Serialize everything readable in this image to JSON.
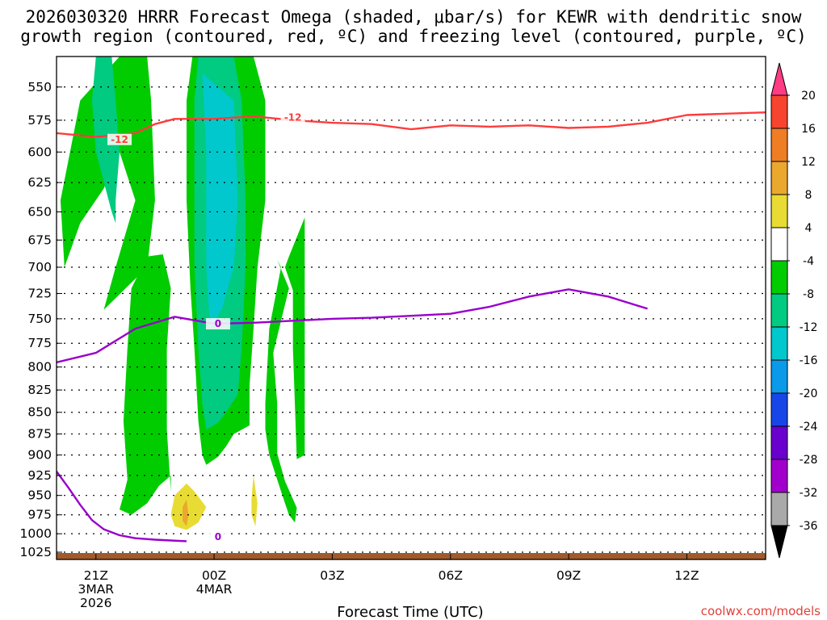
{
  "title": {
    "line1": "2026030320 HRRR Forecast Omega (shaded, μbar/s) for KEWR with dendritic snow",
    "line2": "growth region (contoured, red, ºC) and freezing level (contoured, purple, ºC)"
  },
  "watermark": "coolwx.com/models",
  "chart_data": {
    "type": "time-height cross section",
    "xlabel": "Forecast Time (UTC)",
    "x_ticks": [
      {
        "hour": 21,
        "lines": [
          "21Z",
          "3MAR",
          "2026"
        ]
      },
      {
        "hour": 24,
        "lines": [
          "00Z",
          "4MAR"
        ]
      },
      {
        "hour": 27,
        "lines": [
          "03Z"
        ]
      },
      {
        "hour": 30,
        "lines": [
          "06Z"
        ]
      },
      {
        "hour": 33,
        "lines": [
          "09Z"
        ]
      },
      {
        "hour": 36,
        "lines": [
          "12Z"
        ]
      }
    ],
    "xlim": [
      20,
      38
    ],
    "y_ticks": [
      550,
      575,
      600,
      625,
      650,
      675,
      700,
      725,
      750,
      775,
      800,
      825,
      850,
      875,
      900,
      925,
      950,
      975,
      1000,
      1025
    ],
    "ylim": [
      1035,
      528
    ],
    "y_scale": "log-pressure (hPa)",
    "grid": "dotted horizontal",
    "colorbar": {
      "labels": [
        "20",
        "16",
        "12",
        "8",
        "4",
        "-4",
        "-8",
        "-12",
        "-16",
        "-20",
        "-24",
        "-28",
        "-32",
        "-36"
      ],
      "colors": [
        "#ff3c84",
        "#f6442f",
        "#ef7d24",
        "#eaa82e",
        "#e8dc34",
        "#ffffff",
        "#00cc00",
        "#00cb80",
        "#00c8cc",
        "#0b99ea",
        "#1845e8",
        "#6a00cd",
        "#a100cc",
        "#a9a9a9",
        "#000000"
      ],
      "extend": "both"
    },
    "shaded_regions": [
      {
        "level": "-8 to -4",
        "color": "#00cc00",
        "polygon": [
          [
            21.6,
            528
          ],
          [
            20.6,
            560
          ],
          [
            20.1,
            640
          ],
          [
            20.2,
            700
          ],
          [
            20.6,
            660
          ],
          [
            21.2,
            630
          ],
          [
            21.6,
            600
          ],
          [
            22.0,
            640
          ],
          [
            21.5,
            700
          ],
          [
            21.2,
            741
          ],
          [
            22.3,
            700
          ],
          [
            22.5,
            640
          ],
          [
            22.4,
            560
          ],
          [
            22.3,
            528
          ]
        ]
      },
      {
        "level": "-12 to -8",
        "color": "#00cb80",
        "polygon": [
          [
            21.0,
            528
          ],
          [
            20.9,
            560
          ],
          [
            21.0,
            600
          ],
          [
            21.4,
            650
          ],
          [
            21.5,
            660
          ],
          [
            21.5,
            640
          ],
          [
            21.6,
            600
          ],
          [
            21.5,
            560
          ],
          [
            21.4,
            528
          ]
        ]
      },
      {
        "level": "-8 to -4",
        "color": "#00cc00",
        "polygon": [
          [
            22.3,
            690
          ],
          [
            21.9,
            720
          ],
          [
            21.8,
            780
          ],
          [
            21.7,
            860
          ],
          [
            21.8,
            930
          ],
          [
            21.7,
            950
          ],
          [
            21.6,
            968
          ],
          [
            21.9,
            975
          ],
          [
            22.3,
            960
          ],
          [
            22.6,
            938
          ],
          [
            22.9,
            925
          ],
          [
            22.9,
            945
          ],
          [
            22.8,
            870
          ],
          [
            22.8,
            780
          ],
          [
            22.9,
            720
          ],
          [
            22.7,
            688
          ]
        ]
      },
      {
        "level": "-8 to -4",
        "color": "#00cc00",
        "polygon": [
          [
            23.45,
            528
          ],
          [
            23.3,
            560
          ],
          [
            23.3,
            640
          ],
          [
            23.4,
            720
          ],
          [
            23.5,
            780
          ],
          [
            23.6,
            860
          ],
          [
            23.7,
            900
          ],
          [
            23.8,
            912
          ],
          [
            24.1,
            902
          ],
          [
            24.3,
            890
          ],
          [
            24.5,
            875
          ],
          [
            24.9,
            865
          ],
          [
            24.9,
            820
          ],
          [
            25.0,
            760
          ],
          [
            25.1,
            700
          ],
          [
            25.3,
            640
          ],
          [
            25.3,
            560
          ],
          [
            25.0,
            528
          ]
        ]
      },
      {
        "level": "-12 to -8",
        "color": "#00cb80",
        "polygon": [
          [
            23.6,
            528
          ],
          [
            23.5,
            560
          ],
          [
            23.5,
            600
          ],
          [
            23.5,
            700
          ],
          [
            23.6,
            780
          ],
          [
            23.7,
            840
          ],
          [
            23.8,
            870
          ],
          [
            24.1,
            862
          ],
          [
            24.3,
            850
          ],
          [
            24.6,
            830
          ],
          [
            24.7,
            780
          ],
          [
            24.8,
            700
          ],
          [
            24.8,
            640
          ],
          [
            24.7,
            560
          ],
          [
            24.5,
            528
          ]
        ]
      },
      {
        "level": "-16 to -12",
        "color": "#00c8cc",
        "polygon": [
          [
            23.7,
            540
          ],
          [
            23.8,
            600
          ],
          [
            23.8,
            700
          ],
          [
            23.9,
            760
          ],
          [
            24.2,
            740
          ],
          [
            24.5,
            700
          ],
          [
            24.6,
            640
          ],
          [
            24.5,
            560
          ]
        ]
      },
      {
        "level": "-8 to -4",
        "color": "#00cc00",
        "polygon": [
          [
            25.7,
            700
          ],
          [
            25.4,
            760
          ],
          [
            25.3,
            840
          ],
          [
            25.3,
            870
          ],
          [
            25.4,
            900
          ],
          [
            25.6,
            930
          ],
          [
            25.8,
            960
          ],
          [
            25.9,
            975
          ],
          [
            26.05,
            985
          ],
          [
            26.1,
            966
          ],
          [
            25.8,
            932
          ],
          [
            25.6,
            898
          ],
          [
            25.6,
            840
          ],
          [
            25.5,
            785
          ],
          [
            25.9,
            720
          ],
          [
            25.6,
            693
          ]
        ]
      },
      {
        "level": "-8 to -4",
        "color": "#00cc00",
        "polygon": [
          [
            26.0,
            722
          ],
          [
            25.8,
            700
          ],
          [
            25.9,
            690
          ],
          [
            26.3,
            655
          ],
          [
            26.3,
            900
          ],
          [
            26.1,
            905
          ],
          [
            26.0,
            780
          ]
        ]
      },
      {
        "level": "-8 to -4 (interior)",
        "color": "#00cc00",
        "polygon": []
      }
    ],
    "shaded_regions_note": "",
    "positive_regions": [
      {
        "level": "4 to 8",
        "color": "#e8dc34",
        "polygon": [
          [
            23.0,
            950
          ],
          [
            23.3,
            935
          ],
          [
            23.5,
            945
          ],
          [
            23.8,
            965
          ],
          [
            23.6,
            985
          ],
          [
            23.3,
            995
          ],
          [
            23.0,
            990
          ],
          [
            22.9,
            975
          ]
        ]
      },
      {
        "level": "8 to 12",
        "color": "#eaa82e",
        "polygon": [
          [
            23.3,
            955
          ],
          [
            23.35,
            975
          ],
          [
            23.3,
            990
          ],
          [
            23.2,
            983
          ],
          [
            23.2,
            965
          ]
        ]
      },
      {
        "level": "4 to 8",
        "color": "#e8dc34",
        "polygon": [
          [
            25.0,
            925
          ],
          [
            25.1,
            960
          ],
          [
            25.05,
            990
          ],
          [
            24.95,
            975
          ],
          [
            24.95,
            955
          ]
        ]
      }
    ],
    "contours": [
      {
        "name": "dendritic snow growth",
        "level": "-12",
        "unit": "ºC",
        "color": "#ff3c3c",
        "points": [
          [
            20,
            585
          ],
          [
            21,
            588
          ],
          [
            22,
            585
          ],
          [
            22.5,
            578
          ],
          [
            23,
            574
          ],
          [
            24,
            574
          ],
          [
            25,
            572
          ],
          [
            26,
            575
          ],
          [
            27,
            577
          ],
          [
            28,
            578
          ],
          [
            29,
            582
          ],
          [
            30,
            579
          ],
          [
            31,
            580
          ],
          [
            32,
            579
          ],
          [
            33,
            581
          ],
          [
            34,
            580
          ],
          [
            35,
            577
          ],
          [
            36,
            571
          ],
          [
            37,
            570
          ],
          [
            38,
            569
          ]
        ],
        "labels": [
          {
            "x": 21.6,
            "p": 590,
            "text": "-12"
          },
          {
            "x": 26.0,
            "p": 573,
            "text": "-12"
          }
        ]
      },
      {
        "name": "freezing level",
        "level": "0",
        "unit": "ºC",
        "color": "#9900cc",
        "points": [
          [
            20,
            795
          ],
          [
            21,
            785
          ],
          [
            22,
            760
          ],
          [
            23,
            748
          ],
          [
            24,
            755
          ],
          [
            25,
            754
          ],
          [
            26,
            752
          ],
          [
            27,
            750
          ],
          [
            28,
            749
          ],
          [
            29,
            747
          ],
          [
            30,
            745
          ],
          [
            31,
            738
          ],
          [
            32,
            728
          ],
          [
            33,
            721
          ],
          [
            34,
            728
          ],
          [
            35,
            740
          ]
        ],
        "labels": [
          {
            "x": 24.1,
            "p": 755,
            "text": "0"
          }
        ]
      },
      {
        "name": "freezing level (surface)",
        "level": "0",
        "unit": "ºC",
        "color": "#9900cc",
        "points": [
          [
            20,
            920
          ],
          [
            20.3,
            940
          ],
          [
            20.6,
            962
          ],
          [
            20.9,
            982
          ],
          [
            21.2,
            994
          ],
          [
            21.6,
            1002
          ],
          [
            22.0,
            1006
          ],
          [
            22.5,
            1008
          ],
          [
            22.9,
            1009
          ],
          [
            23.3,
            1010
          ]
        ],
        "labels": [
          {
            "x": 24.1,
            "p": 1004,
            "text": "0"
          }
        ]
      }
    ]
  }
}
